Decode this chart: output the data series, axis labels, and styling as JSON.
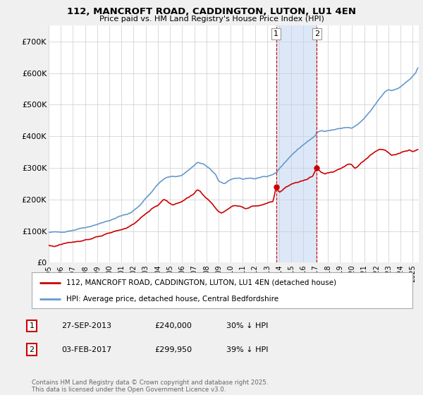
{
  "title": "112, MANCROFT ROAD, CADDINGTON, LUTON, LU1 4EN",
  "subtitle": "Price paid vs. HM Land Registry's House Price Index (HPI)",
  "background_color": "#f0f0f0",
  "plot_bg_color": "#ffffff",
  "ylim": [
    0,
    750000
  ],
  "yticks": [
    0,
    100000,
    200000,
    300000,
    400000,
    500000,
    600000,
    700000
  ],
  "ytick_labels": [
    "£0",
    "£100K",
    "£200K",
    "£300K",
    "£400K",
    "£500K",
    "£600K",
    "£700K"
  ],
  "xlim_start": 1995.0,
  "xlim_end": 2025.5,
  "xtick_years": [
    1995,
    1996,
    1997,
    1998,
    1999,
    2000,
    2001,
    2002,
    2003,
    2004,
    2005,
    2006,
    2007,
    2008,
    2009,
    2010,
    2011,
    2012,
    2013,
    2014,
    2015,
    2016,
    2017,
    2018,
    2019,
    2020,
    2021,
    2022,
    2023,
    2024,
    2025
  ],
  "sale1_x": 2013.74,
  "sale1_y": 240000,
  "sale1_label": "1",
  "sale2_x": 2017.09,
  "sale2_y": 299950,
  "sale2_label": "2",
  "shade_color": "#dce8f8",
  "vline_color": "#cc0000",
  "legend_red_label": "112, MANCROFT ROAD, CADDINGTON, LUTON, LU1 4EN (detached house)",
  "legend_blue_label": "HPI: Average price, detached house, Central Bedfordshire",
  "table_rows": [
    {
      "num": "1",
      "date": "27-SEP-2013",
      "price": "£240,000",
      "hpi": "30% ↓ HPI"
    },
    {
      "num": "2",
      "date": "03-FEB-2017",
      "price": "£299,950",
      "hpi": "39% ↓ HPI"
    }
  ],
  "footer": "Contains HM Land Registry data © Crown copyright and database right 2025.\nThis data is licensed under the Open Government Licence v3.0.",
  "hpi_color": "#6699cc",
  "price_color": "#cc0000"
}
